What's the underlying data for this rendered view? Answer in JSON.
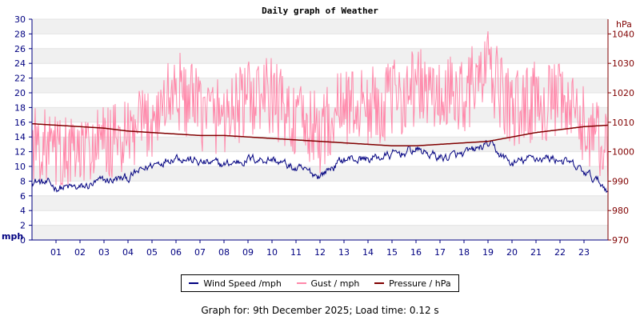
{
  "chart_data": {
    "type": "line",
    "title": "Daily graph of Weather",
    "left_axis": {
      "unit": "mph",
      "ylim": [
        0,
        30
      ],
      "ticks": [
        0,
        2,
        4,
        6,
        8,
        10,
        12,
        14,
        16,
        18,
        20,
        22,
        24,
        26,
        28,
        30
      ]
    },
    "right_axis": {
      "unit": "hPa",
      "ylim": [
        970,
        1045
      ],
      "ticks": [
        970,
        980,
        990,
        1000,
        1010,
        1020,
        1030,
        1040
      ]
    },
    "x_ticks": [
      "01",
      "02",
      "03",
      "04",
      "05",
      "06",
      "07",
      "08",
      "09",
      "10",
      "11",
      "12",
      "13",
      "14",
      "15",
      "16",
      "17",
      "18",
      "19",
      "20",
      "21",
      "22",
      "23"
    ],
    "x_range_hours": [
      0,
      24
    ],
    "grid": "horizontal bands",
    "legend_placement": "bottom",
    "series": [
      {
        "name": "Wind Speed /mph",
        "axis": "left",
        "color": "#000080",
        "x": [
          0,
          1,
          2,
          3,
          4,
          5,
          6,
          7,
          8,
          9,
          10,
          11,
          12,
          13,
          14,
          15,
          16,
          17,
          18,
          19,
          20,
          21,
          22,
          23,
          24
        ],
        "values": [
          8.2,
          7.2,
          7.0,
          8.0,
          8.4,
          10.2,
          11.5,
          10.5,
          10.2,
          11.0,
          11.0,
          9.6,
          8.8,
          11.0,
          11.0,
          11.5,
          12.3,
          11.2,
          11.5,
          13.0,
          10.3,
          11.2,
          11.0,
          9.2,
          7.0
        ]
      },
      {
        "name": "Gust / mph",
        "axis": "left",
        "color": "#ff88aa",
        "x": [
          0,
          1,
          2,
          3,
          4,
          5,
          6,
          7,
          8,
          9,
          10,
          11,
          12,
          13,
          14,
          15,
          16,
          17,
          18,
          19,
          20,
          21,
          22,
          23,
          24
        ],
        "values": [
          13.5,
          11.5,
          11.5,
          13.0,
          13.5,
          16.5,
          20.5,
          17.5,
          17.0,
          19.0,
          19.5,
          16.0,
          14.5,
          18.5,
          18.0,
          19.0,
          21.0,
          19.0,
          20.0,
          23.0,
          17.5,
          19.0,
          18.5,
          15.5,
          12.0
        ]
      },
      {
        "name": "Pressure / hPa",
        "axis": "right",
        "color": "#800000",
        "x": [
          0,
          1,
          2,
          3,
          4,
          5,
          6,
          7,
          8,
          9,
          10,
          11,
          12,
          13,
          14,
          15,
          16,
          17,
          18,
          19,
          20,
          21,
          22,
          23,
          24
        ],
        "values": [
          1009.5,
          1009.0,
          1008.5,
          1008.0,
          1007.0,
          1006.5,
          1006.0,
          1005.5,
          1005.5,
          1005.0,
          1004.5,
          1004.0,
          1003.5,
          1003.0,
          1002.5,
          1002.0,
          1002.0,
          1002.5,
          1003.0,
          1003.5,
          1005.0,
          1006.5,
          1007.5,
          1008.5,
          1009.0
        ]
      }
    ]
  },
  "footer": "Graph for: 9th December 2025; Load time: 0.12 s"
}
